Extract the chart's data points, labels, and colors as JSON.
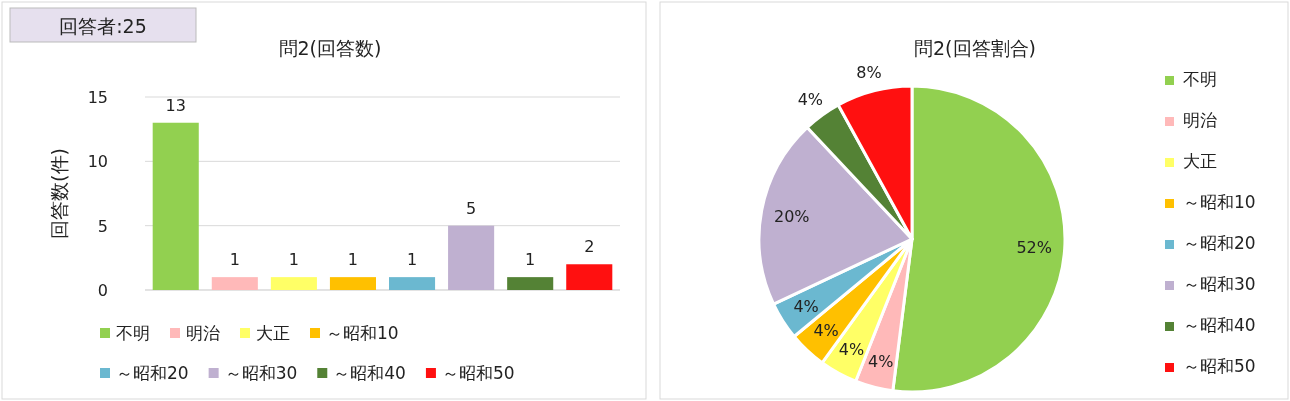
{
  "chart_data": [
    {
      "type": "bar",
      "title": "問2(回答数)",
      "ylabel": "回答数(件)",
      "annotations": [
        "回答者:25"
      ],
      "categories": [
        null
      ],
      "series": [
        {
          "name": "不明",
          "color": "#92d050",
          "values": [
            13
          ]
        },
        {
          "name": "明治",
          "color": "#ffb9b9",
          "values": [
            1
          ]
        },
        {
          "name": "大正",
          "color": "#ffff66",
          "values": [
            1
          ]
        },
        {
          "name": "～昭和10",
          "color": "#ffc000",
          "values": [
            1
          ]
        },
        {
          "name": "～昭和20",
          "color": "#6bb8d0",
          "values": [
            1
          ]
        },
        {
          "name": "～昭和30",
          "color": "#bfb0d0",
          "values": [
            5
          ]
        },
        {
          "name": "～昭和40",
          "color": "#548235",
          "values": [
            1
          ]
        },
        {
          "name": "～昭和50",
          "color": "#ff1010",
          "values": [
            2
          ]
        }
      ],
      "ylim": [
        0,
        15
      ],
      "yticks": [
        0,
        5,
        10,
        15
      ],
      "grid": "y",
      "data_labels": true,
      "legend": "bottom"
    },
    {
      "type": "pie",
      "title": "問2(回答割合)",
      "categories": [
        "不明",
        "明治",
        "大正",
        "～昭和10",
        "～昭和20",
        "～昭和30",
        "～昭和40",
        "～昭和50"
      ],
      "values": [
        52,
        4,
        4,
        4,
        4,
        20,
        4,
        8
      ],
      "value_labels": [
        "52%",
        "4%",
        "4%",
        "4%",
        "4%",
        "20%",
        "4%",
        "8%"
      ],
      "colors": [
        "#92d050",
        "#ffb9b9",
        "#ffff66",
        "#ffc000",
        "#6bb8d0",
        "#bfb0d0",
        "#548235",
        "#ff1010"
      ],
      "legend": "right"
    }
  ]
}
